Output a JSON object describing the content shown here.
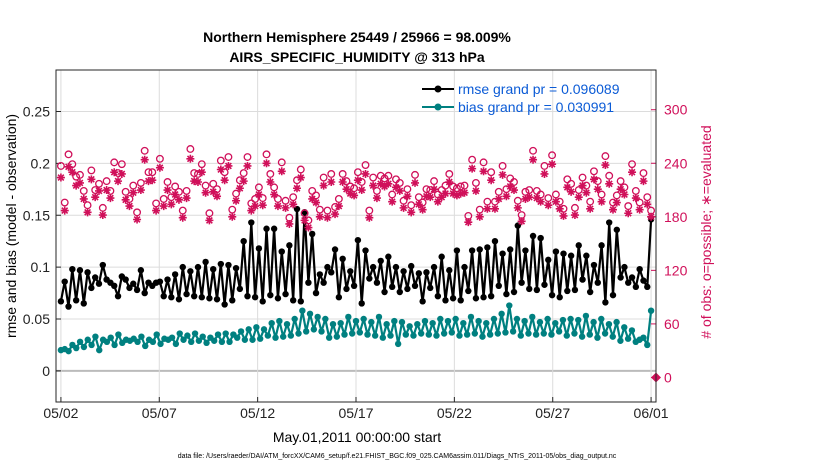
{
  "chart_data": {
    "type": "line",
    "title": "Northern Hemisphere 25449 / 25966 = 98.009%",
    "subtitle": "AIRS_SPECIFIC_HUMIDITY @ 313 hPa",
    "xlabel": "May.01,2011 00:00:00 start",
    "ylabel": "rmse and bias (model - observation)",
    "ylabel_right": "# of obs: o=possible; ∗=evaluated",
    "footer": "data file: /Users/raeder/DAI/ATM_forcXX/CAM6_setup/f.e21.FHIST_BGC.f09_025.CAM6assim.011/Diags_NTrS_2011-05/obs_diag_output.nc",
    "x_ticks": [
      "05/02",
      "05/07",
      "05/12",
      "05/17",
      "05/22",
      "05/27",
      "06/01"
    ],
    "x_tick_days": [
      1,
      6,
      11,
      16,
      21,
      26,
      31
    ],
    "xlim_days": [
      0.75,
      31.25
    ],
    "y_ticks": [
      "0",
      "0.05",
      "0.1",
      "0.15",
      "0.2",
      "0.25"
    ],
    "ylim": [
      -0.03,
      0.29
    ],
    "y2_ticks": [
      "0",
      "60",
      "120",
      "180",
      "240",
      "300"
    ],
    "y2lim": [
      -27.5,
      344.5
    ],
    "grid": true,
    "legend_position": "top-right",
    "series": [
      {
        "name": "rmse grand pr = 0.096089",
        "axis": "left",
        "color": "#000000",
        "marker": "dot",
        "values": [
          0.067,
          0.086,
          0.062,
          0.098,
          0.068,
          0.097,
          0.065,
          0.095,
          0.08,
          0.09,
          0.084,
          0.102,
          0.088,
          0.085,
          0.082,
          0.072,
          0.091,
          0.088,
          0.08,
          0.084,
          0.078,
          0.097,
          0.075,
          0.085,
          0.082,
          0.085,
          0.086,
          0.072,
          0.088,
          0.071,
          0.093,
          0.069,
          0.1,
          0.074,
          0.096,
          0.072,
          0.1,
          0.071,
          0.105,
          0.07,
          0.098,
          0.069,
          0.103,
          0.064,
          0.102,
          0.068,
          0.099,
          0.079,
          0.125,
          0.072,
          0.143,
          0.071,
          0.118,
          0.067,
          0.137,
          0.073,
          0.137,
          0.07,
          0.115,
          0.074,
          0.121,
          0.068,
          0.156,
          0.067,
          0.153,
          0.085,
          0.132,
          0.075,
          0.093,
          0.085,
          0.1,
          0.095,
          0.117,
          0.071,
          0.108,
          0.079,
          0.096,
          0.082,
          0.126,
          0.065,
          0.116,
          0.089,
          0.1,
          0.085,
          0.106,
          0.076,
          0.11,
          0.081,
          0.1,
          0.076,
          0.096,
          0.079,
          0.101,
          0.082,
          0.094,
          0.067,
          0.095,
          0.08,
          0.1,
          0.072,
          0.11,
          0.068,
          0.097,
          0.07,
          0.116,
          0.068,
          0.1,
          0.077,
          0.116,
          0.07,
          0.117,
          0.071,
          0.119,
          0.072,
          0.125,
          0.082,
          0.113,
          0.074,
          0.117,
          0.076,
          0.14,
          0.085,
          0.116,
          0.079,
          0.13,
          0.078,
          0.128,
          0.083,
          0.107,
          0.073,
          0.115,
          0.071,
          0.113,
          0.077,
          0.111,
          0.078,
          0.121,
          0.088,
          0.111,
          0.076,
          0.102,
          0.085,
          0.121,
          0.066,
          0.143,
          0.073,
          0.136,
          0.09,
          0.1,
          0.085,
          0.09,
          0.081,
          0.098,
          0.087,
          0.081,
          0.146
        ]
      },
      {
        "name": "bias grand pr = 0.030991",
        "axis": "left",
        "color": "#008080",
        "marker": "dot",
        "values": [
          0.02,
          0.021,
          0.019,
          0.025,
          0.022,
          0.028,
          0.023,
          0.03,
          0.025,
          0.033,
          0.02,
          0.03,
          0.028,
          0.032,
          0.025,
          0.035,
          0.027,
          0.03,
          0.029,
          0.031,
          0.028,
          0.033,
          0.024,
          0.03,
          0.028,
          0.035,
          0.026,
          0.031,
          0.03,
          0.032,
          0.026,
          0.036,
          0.03,
          0.034,
          0.028,
          0.036,
          0.029,
          0.033,
          0.027,
          0.032,
          0.029,
          0.035,
          0.028,
          0.036,
          0.028,
          0.035,
          0.032,
          0.038,
          0.03,
          0.04,
          0.03,
          0.042,
          0.031,
          0.04,
          0.034,
          0.046,
          0.032,
          0.048,
          0.033,
          0.045,
          0.034,
          0.05,
          0.036,
          0.058,
          0.038,
          0.055,
          0.04,
          0.052,
          0.038,
          0.05,
          0.032,
          0.045,
          0.033,
          0.046,
          0.035,
          0.052,
          0.036,
          0.048,
          0.037,
          0.05,
          0.035,
          0.047,
          0.034,
          0.052,
          0.032,
          0.045,
          0.034,
          0.048,
          0.026,
          0.047,
          0.035,
          0.043,
          0.034,
          0.045,
          0.036,
          0.048,
          0.035,
          0.046,
          0.034,
          0.05,
          0.036,
          0.048,
          0.037,
          0.05,
          0.034,
          0.046,
          0.035,
          0.052,
          0.036,
          0.048,
          0.033,
          0.046,
          0.035,
          0.05,
          0.036,
          0.055,
          0.037,
          0.063,
          0.038,
          0.05,
          0.034,
          0.048,
          0.036,
          0.052,
          0.035,
          0.047,
          0.036,
          0.05,
          0.035,
          0.046,
          0.038,
          0.049,
          0.034,
          0.05,
          0.036,
          0.049,
          0.033,
          0.053,
          0.035,
          0.047,
          0.032,
          0.05,
          0.036,
          0.045,
          0.033,
          0.047,
          0.029,
          0.042,
          0.031,
          0.039,
          0.028,
          0.03,
          0.032,
          0.025,
          0.058
        ]
      },
      {
        "name": "obs possible",
        "axis": "right",
        "color": "#d0105a",
        "marker": "circle",
        "values": [
          237,
          196,
          250,
          239,
          225,
          227,
          209,
          193,
          232,
          210,
          217,
          190,
          220,
          209,
          241,
          229,
          239,
          208,
          200,
          215,
          185,
          218,
          254,
          230,
          230,
          195,
          245,
          200,
          219,
          202,
          214,
          208,
          187,
          209,
          256,
          229,
          228,
          239,
          215,
          184,
          217,
          211,
          243,
          230,
          247,
          188,
          206,
          221,
          229,
          247,
          195,
          200,
          213,
          201,
          250,
          228,
          213,
          200,
          241,
          198,
          179,
          202,
          221,
          233,
          184,
          176,
          209,
          204,
          188,
          224,
          187,
          228,
          191,
          200,
          228,
          220,
          214,
          212,
          230,
          219,
          238,
          187,
          224,
          209,
          226,
          223,
          226,
          205,
          222,
          218,
          198,
          211,
          193,
          227,
          202,
          196,
          211,
          210,
          220,
          205,
          210,
          215,
          228,
          214,
          212,
          214,
          215,
          181,
          244,
          218,
          188,
          241,
          197,
          230,
          197,
          208,
          237,
          211,
          223,
          219,
          198,
          182,
          208,
          210,
          254,
          209,
          205,
          237,
          201,
          249,
          205,
          197,
          189,
          222,
          217,
          190,
          210,
          224,
          215,
          197,
          231,
          220,
          205,
          248,
          226,
          196,
          204,
          220,
          213,
          192,
          239,
          209,
          196,
          229,
          202,
          187
        ]
      },
      {
        "name": "obs evaluated",
        "axis": "right",
        "color": "#d0105a",
        "marker": "asterisk",
        "values": [
          224,
          187,
          236,
          230,
          215,
          218,
          200,
          185,
          222,
          202,
          209,
          182,
          210,
          201,
          230,
          220,
          228,
          199,
          192,
          207,
          177,
          210,
          244,
          220,
          221,
          187,
          235,
          192,
          210,
          194,
          205,
          199,
          179,
          201,
          245,
          220,
          219,
          230,
          207,
          176,
          208,
          203,
          233,
          221,
          237,
          180,
          198,
          212,
          220,
          237,
          187,
          192,
          205,
          193,
          240,
          219,
          205,
          192,
          231,
          190,
          172,
          194,
          212,
          224,
          176,
          168,
          200,
          196,
          180,
          215,
          179,
          219,
          183,
          192,
          219,
          211,
          206,
          204,
          221,
          210,
          228,
          179,
          215,
          201,
          217,
          214,
          217,
          197,
          213,
          209,
          190,
          203,
          185,
          218,
          194,
          188,
          203,
          202,
          211,
          197,
          202,
          206,
          219,
          206,
          204,
          206,
          207,
          174,
          234,
          209,
          180,
          231,
          189,
          221,
          189,
          200,
          227,
          203,
          214,
          210,
          190,
          175,
          200,
          202,
          244,
          201,
          197,
          228,
          193,
          239,
          197,
          189,
          181,
          213,
          208,
          182,
          202,
          215,
          207,
          189,
          222,
          211,
          197,
          238,
          217,
          188,
          196,
          211,
          205,
          184,
          230,
          201,
          188,
          220,
          194,
          180
        ]
      }
    ]
  }
}
